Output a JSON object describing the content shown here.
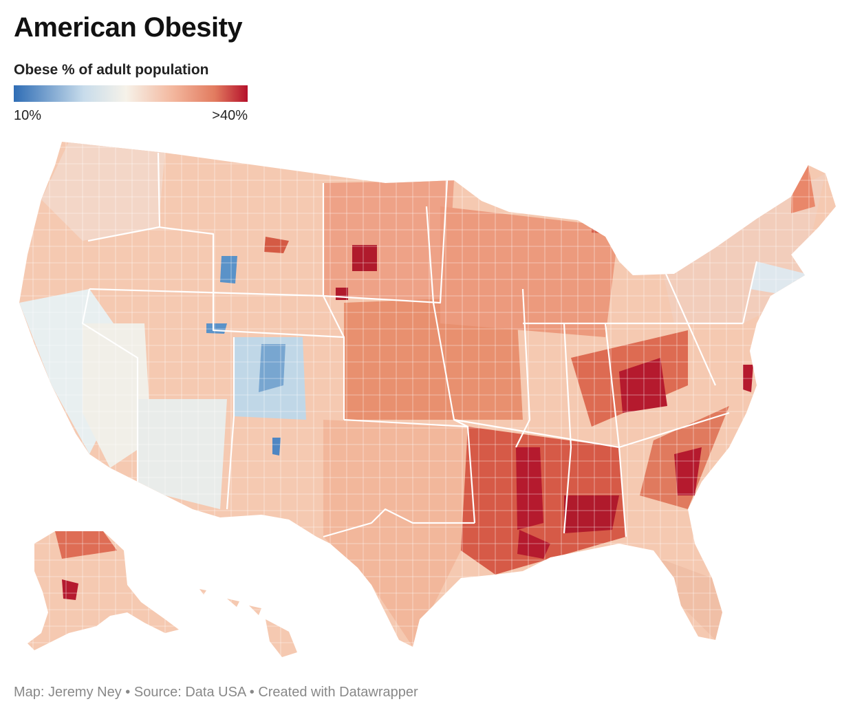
{
  "header": {
    "title": "American Obesity"
  },
  "legend": {
    "title": "Obese % of adult population",
    "min_label": "10%",
    "max_label": ">40%",
    "scale": {
      "min_percent": 10,
      "max_percent": 40
    },
    "colors": [
      "#2f6db5",
      "#c8dceb",
      "#f6f2e9",
      "#f3b79e",
      "#e27b5f",
      "#b5112b"
    ]
  },
  "map": {
    "subject": "United States counties colored by adult obesity rate",
    "regions": [
      {
        "name": "Pacific Northwest",
        "level": 0.45
      },
      {
        "name": "California coast",
        "level": 0.28
      },
      {
        "name": "Great Basin",
        "level": 0.4
      },
      {
        "name": "Colorado Rockies",
        "level": 0.15
      },
      {
        "name": "Northern Plains",
        "level": 0.68
      },
      {
        "name": "Central Plains",
        "level": 0.7
      },
      {
        "name": "Texas",
        "level": 0.55
      },
      {
        "name": "Deep South",
        "level": 0.9
      },
      {
        "name": "Appalachia",
        "level": 0.85
      },
      {
        "name": "Midwest",
        "level": 0.68
      },
      {
        "name": "Northeast",
        "level": 0.48
      },
      {
        "name": "Florida",
        "level": 0.45
      },
      {
        "name": "Alaska",
        "level": 0.65
      },
      {
        "name": "Hawaii",
        "level": 0.32
      }
    ]
  },
  "footer": {
    "map_credit": "Map: Jeremy Ney",
    "source": "Source: Data USA",
    "tool": "Created with Datawrapper",
    "separator": "•"
  }
}
